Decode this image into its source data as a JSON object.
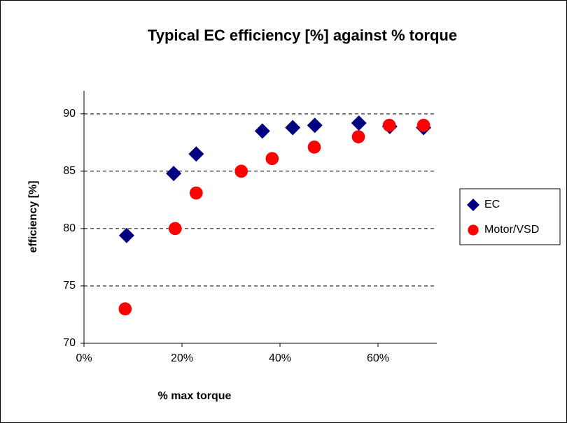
{
  "chart_data": {
    "type": "scatter",
    "title": "Typical EC efficiency [%] against % torque",
    "x_label": "% max torque",
    "y_label": "efficiency [%]",
    "xlim": [
      0,
      72
    ],
    "xticks": [
      {
        "value": 0,
        "label": "0%"
      },
      {
        "value": 20,
        "label": "20%"
      },
      {
        "value": 40,
        "label": "40%"
      },
      {
        "value": 60,
        "label": "60%"
      }
    ],
    "ylim": [
      70,
      92
    ],
    "yticks": [
      70,
      75,
      80,
      85,
      90
    ],
    "grid": true,
    "legend": "right",
    "series": [
      {
        "name": "EC",
        "color": "#000080",
        "marker": "diamond",
        "x": [
          8.7,
          18.3,
          22.9,
          36.4,
          42.6,
          47.1,
          56.1,
          62.4,
          69.3
        ],
        "values": [
          79.4,
          84.8,
          86.5,
          88.5,
          88.8,
          89.0,
          89.2,
          88.9,
          88.8
        ]
      },
      {
        "name": "Motor/VSD",
        "color": "#ff0000",
        "marker": "circle",
        "x": [
          8.4,
          18.6,
          22.9,
          32.1,
          38.4,
          47.0,
          56.0,
          62.3,
          69.3
        ],
        "values": [
          73.0,
          80.0,
          83.1,
          85.0,
          86.1,
          87.1,
          88.0,
          89.0,
          89.0
        ]
      }
    ]
  }
}
